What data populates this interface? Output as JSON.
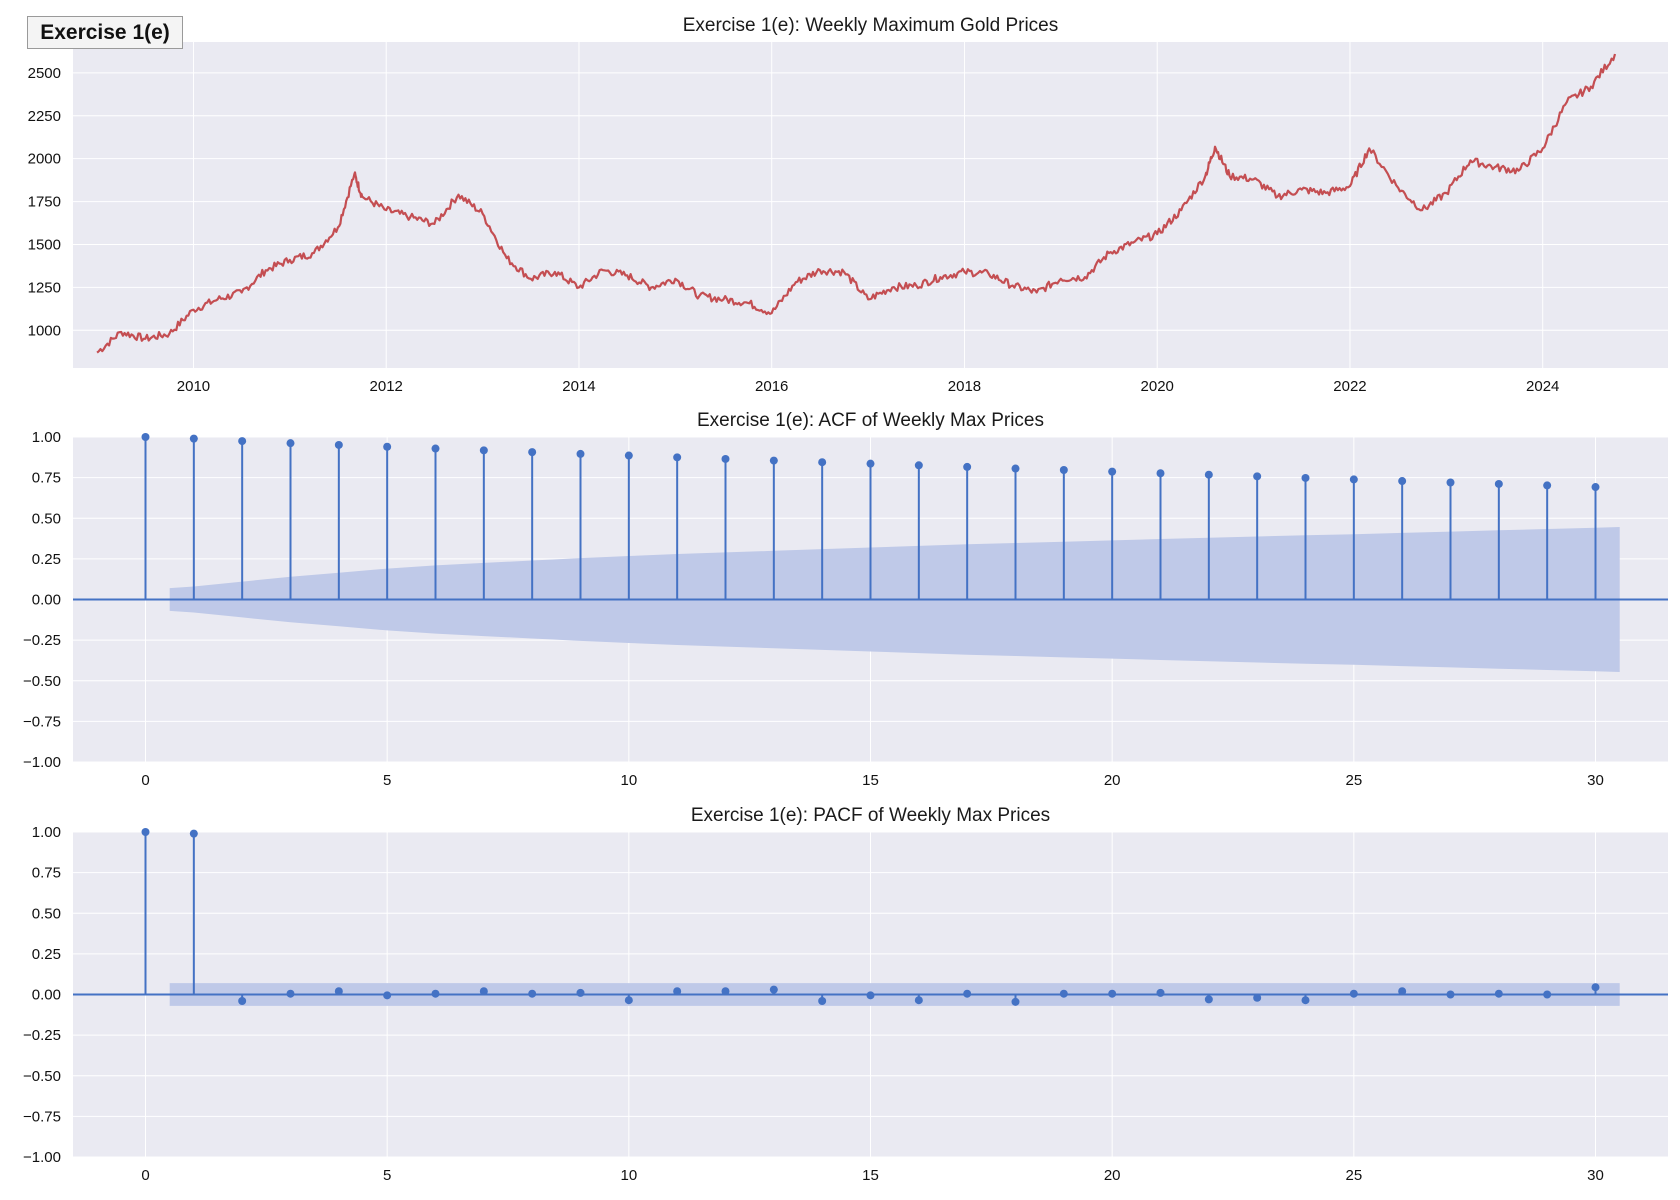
{
  "badge": "Exercise 1(e)",
  "chart_data": [
    {
      "type": "line",
      "title": "Exercise 1(e): Weekly Maximum Gold Prices",
      "xlabel": "",
      "ylabel": "",
      "color": "#c44e52",
      "xlim": [
        2008.75,
        2025.3
      ],
      "ylim": [
        780,
        2680
      ],
      "xticks": [
        2010,
        2012,
        2014,
        2016,
        2018,
        2020,
        2022,
        2024
      ],
      "yticks": [
        1000,
        1250,
        1500,
        1750,
        2000,
        2250,
        2500
      ],
      "grid": true,
      "x": [
        2009.0,
        2009.25,
        2009.5,
        2009.75,
        2010.0,
        2010.25,
        2010.5,
        2010.75,
        2011.0,
        2011.25,
        2011.5,
        2011.67,
        2011.75,
        2012.0,
        2012.25,
        2012.5,
        2012.75,
        2013.0,
        2013.25,
        2013.5,
        2013.75,
        2014.0,
        2014.25,
        2014.5,
        2014.75,
        2015.0,
        2015.25,
        2015.5,
        2015.75,
        2016.0,
        2016.25,
        2016.5,
        2016.75,
        2017.0,
        2017.25,
        2017.5,
        2017.75,
        2018.0,
        2018.25,
        2018.5,
        2018.75,
        2019.0,
        2019.25,
        2019.5,
        2019.75,
        2020.0,
        2020.25,
        2020.5,
        2020.6,
        2020.75,
        2021.0,
        2021.25,
        2021.5,
        2021.75,
        2022.0,
        2022.2,
        2022.5,
        2022.75,
        2023.0,
        2023.25,
        2023.5,
        2023.75,
        2024.0,
        2024.25,
        2024.5,
        2024.75
      ],
      "y": [
        870,
        990,
        950,
        980,
        1120,
        1180,
        1220,
        1350,
        1410,
        1450,
        1600,
        1910,
        1780,
        1700,
        1660,
        1620,
        1790,
        1680,
        1420,
        1300,
        1340,
        1250,
        1350,
        1320,
        1250,
        1300,
        1200,
        1180,
        1160,
        1100,
        1280,
        1350,
        1340,
        1180,
        1250,
        1260,
        1310,
        1340,
        1330,
        1260,
        1220,
        1300,
        1310,
        1450,
        1510,
        1560,
        1700,
        1900,
        2070,
        1900,
        1880,
        1780,
        1820,
        1800,
        1840,
        2060,
        1830,
        1700,
        1800,
        1990,
        1950,
        1930,
        2060,
        2330,
        2420,
        2610
      ]
    },
    {
      "type": "bar",
      "title": "Exercise 1(e): ACF of Weekly Max Prices",
      "xlabel": "",
      "ylabel": "",
      "color": "#4472c4",
      "band_color": "#bfc9e8",
      "xlim": [
        -1.5,
        31.5
      ],
      "ylim": [
        -1.0,
        1.0
      ],
      "xticks": [
        0,
        5,
        10,
        15,
        20,
        25,
        30
      ],
      "yticks": [
        -1.0,
        -0.75,
        -0.5,
        -0.25,
        0.0,
        0.25,
        0.5,
        0.75,
        1.0
      ],
      "ytick_labels": [
        "−1.00",
        "−0.75",
        "−0.50",
        "−0.25",
        "0.00",
        "0.25",
        "0.50",
        "0.75",
        "1.00"
      ],
      "x": [
        0,
        1,
        2,
        3,
        4,
        5,
        6,
        7,
        8,
        9,
        10,
        11,
        12,
        13,
        14,
        15,
        16,
        17,
        18,
        19,
        20,
        21,
        22,
        23,
        24,
        25,
        26,
        27,
        28,
        29,
        30
      ],
      "y": [
        1.0,
        0.99,
        0.975,
        0.962,
        0.951,
        0.94,
        0.929,
        0.918,
        0.907,
        0.896,
        0.886,
        0.875,
        0.865,
        0.855,
        0.845,
        0.836,
        0.826,
        0.816,
        0.806,
        0.797,
        0.787,
        0.777,
        0.768,
        0.758,
        0.748,
        0.739,
        0.729,
        0.72,
        0.711,
        0.702,
        0.692
      ],
      "confidence_band": {
        "x": [
          0.5,
          1,
          2,
          3,
          4,
          5,
          6,
          7,
          8,
          9,
          10,
          11,
          12,
          13,
          14,
          15,
          16,
          17,
          18,
          19,
          20,
          21,
          22,
          23,
          24,
          25,
          26,
          27,
          28,
          29,
          30,
          30.5
        ],
        "y": [
          0.07,
          0.08,
          0.11,
          0.14,
          0.165,
          0.19,
          0.21,
          0.225,
          0.24,
          0.255,
          0.268,
          0.28,
          0.29,
          0.3,
          0.31,
          0.32,
          0.33,
          0.34,
          0.348,
          0.356,
          0.364,
          0.372,
          0.38,
          0.388,
          0.395,
          0.402,
          0.41,
          0.418,
          0.426,
          0.434,
          0.442,
          0.446
        ]
      }
    },
    {
      "type": "bar",
      "title": "Exercise 1(e): PACF of Weekly Max Prices",
      "xlabel": "",
      "ylabel": "",
      "color": "#4472c4",
      "band_color": "#bfc9e8",
      "xlim": [
        -1.5,
        31.5
      ],
      "ylim": [
        -1.0,
        1.0
      ],
      "xticks": [
        0,
        5,
        10,
        15,
        20,
        25,
        30
      ],
      "yticks": [
        -1.0,
        -0.75,
        -0.5,
        -0.25,
        0.0,
        0.25,
        0.5,
        0.75,
        1.0
      ],
      "ytick_labels": [
        "−1.00",
        "−0.75",
        "−0.50",
        "−0.25",
        "0.00",
        "0.25",
        "0.50",
        "0.75",
        "1.00"
      ],
      "x": [
        0,
        1,
        2,
        3,
        4,
        5,
        6,
        7,
        8,
        9,
        10,
        11,
        12,
        13,
        14,
        15,
        16,
        17,
        18,
        19,
        20,
        21,
        22,
        23,
        24,
        25,
        26,
        27,
        28,
        29,
        30
      ],
      "y": [
        1.0,
        0.99,
        -0.04,
        0.005,
        0.02,
        -0.005,
        0.005,
        0.02,
        0.005,
        0.01,
        -0.035,
        0.02,
        0.02,
        0.03,
        -0.04,
        -0.005,
        -0.035,
        0.005,
        -0.045,
        0.005,
        0.005,
        0.01,
        -0.03,
        -0.02,
        -0.035,
        0.005,
        0.02,
        0.0,
        0.005,
        0.0,
        0.045
      ],
      "confidence_band": {
        "x": [
          0.5,
          30.5
        ],
        "y": [
          0.07,
          0.07
        ]
      }
    }
  ]
}
